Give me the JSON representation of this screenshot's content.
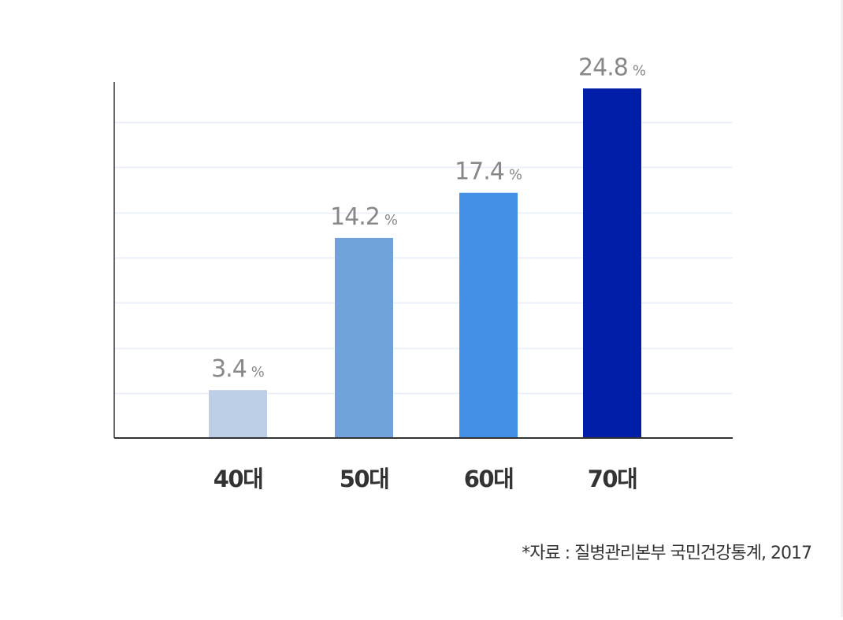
{
  "chart_data": {
    "type": "bar",
    "categories": [
      "40대",
      "50대",
      "60대",
      "70대"
    ],
    "values": [
      3.4,
      14.2,
      17.4,
      24.8
    ],
    "value_labels": [
      "3.4",
      "14.2",
      "17.4",
      "24.8"
    ],
    "unit": "%",
    "colors": [
      "#bccfe7",
      "#6fa3d9",
      "#4490e6",
      "#001ea8"
    ],
    "grid": true,
    "grid_color": "#e8eef7",
    "axis_color": "#333333",
    "label_color": "#888888",
    "ylim": [
      0,
      25.6
    ],
    "gridline_count": 7,
    "title": "",
    "xlabel": "",
    "ylabel": ""
  },
  "source": "*자료 : 질병관리본부 국민건강통계, 2017"
}
